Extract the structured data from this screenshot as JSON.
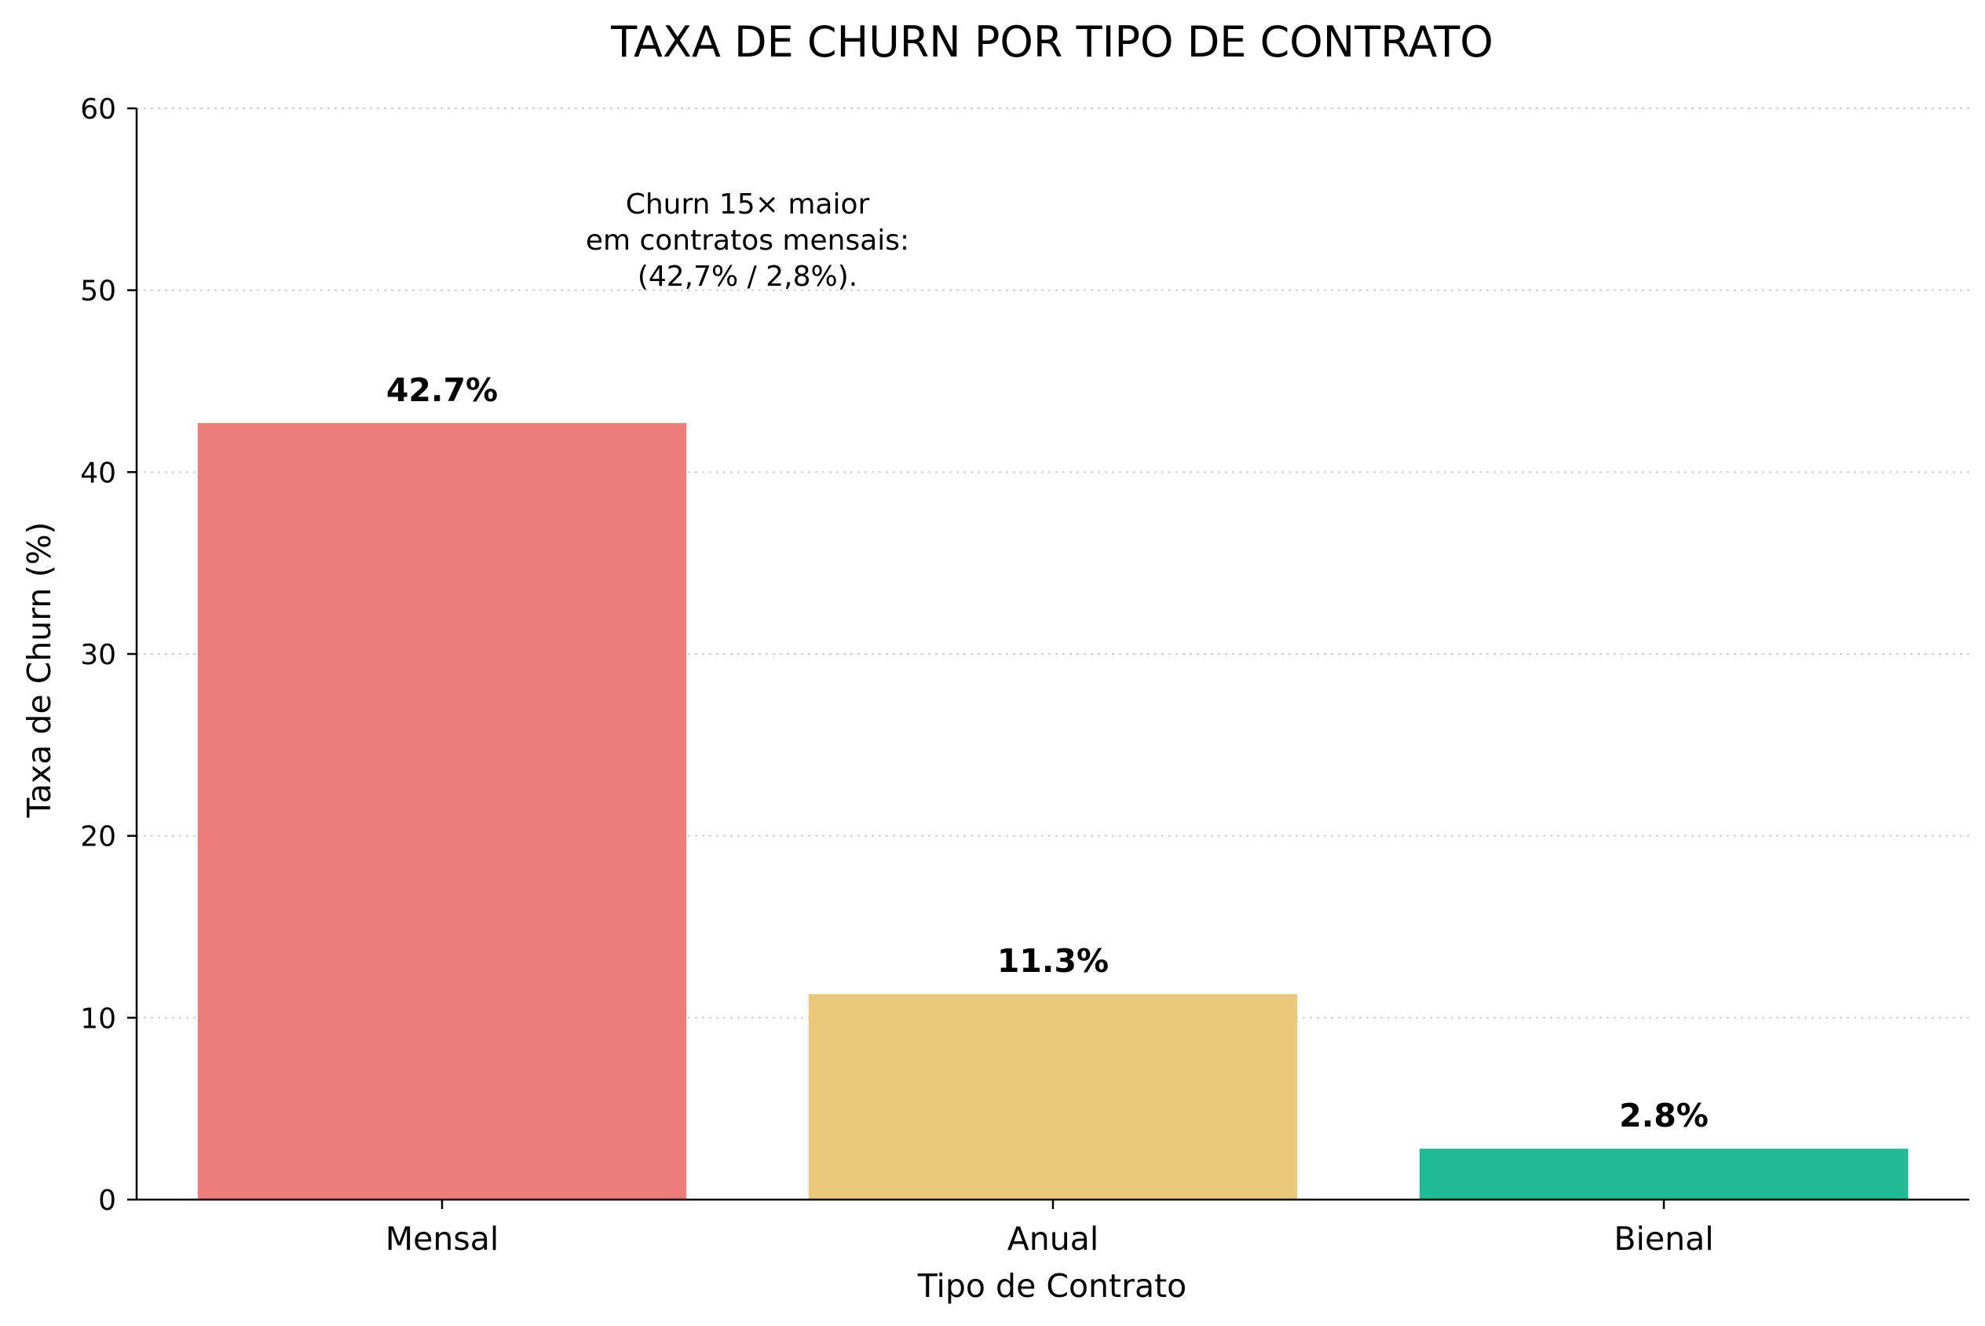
{
  "chart_data": {
    "type": "bar",
    "title": "TAXA DE CHURN POR TIPO DE CONTRATO",
    "xlabel": "Tipo de Contrato",
    "ylabel": "Taxa de Churn (%)",
    "categories": [
      "Mensal",
      "Anual",
      "Bienal"
    ],
    "values": [
      42.7,
      11.3,
      2.8
    ],
    "value_labels": [
      "42.7%",
      "11.3%",
      "2.8%"
    ],
    "colors": [
      "#ed7d7b",
      "#ebc97a",
      "#20bb94"
    ],
    "ylim": [
      0,
      60
    ],
    "yticks": [
      0,
      10,
      20,
      30,
      40,
      50,
      60
    ],
    "ytick_labels": [
      "0",
      "10",
      "20",
      "30",
      "40",
      "50",
      "60"
    ],
    "grid": "horizontal dotted",
    "annotation": {
      "lines": [
        "Churn 15× maior",
        "em contratos mensais:",
        "(42,7% / 2,8%)."
      ]
    }
  }
}
